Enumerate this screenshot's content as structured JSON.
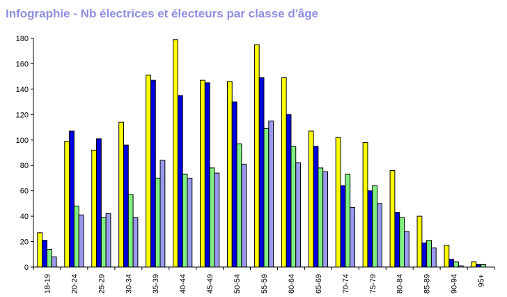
{
  "chart_data": {
    "type": "bar",
    "title": "Infographie - Nb électrices et électeurs par classe d'âge",
    "xlabel": "",
    "ylabel": "",
    "ylim": [
      0,
      180
    ],
    "yticks": [
      0,
      20,
      40,
      60,
      80,
      100,
      120,
      140,
      160,
      180
    ],
    "grid": false,
    "legend": "none",
    "categories": [
      "18-19",
      "20-24",
      "25-29",
      "30-34",
      "35-39",
      "40-44",
      "45-49",
      "50-54",
      "55-59",
      "60-64",
      "65-69",
      "70-74",
      "75-79",
      "80-84",
      "85-89",
      "90-94",
      "95+"
    ],
    "series": [
      {
        "color": "#ffff00",
        "values": [
          27,
          99,
          92,
          114,
          151,
          179,
          147,
          146,
          175,
          149,
          107,
          102,
          98,
          76,
          40,
          17,
          4
        ]
      },
      {
        "color": "#0000dd",
        "values": [
          21,
          107,
          101,
          96,
          147,
          135,
          145,
          130,
          149,
          120,
          95,
          64,
          60,
          43,
          19,
          6,
          2
        ]
      },
      {
        "color": "#80f080",
        "values": [
          14,
          48,
          39,
          57,
          70,
          73,
          78,
          97,
          109,
          95,
          78,
          73,
          64,
          39,
          21,
          4,
          2
        ]
      },
      {
        "color": "#9999ee",
        "values": [
          8,
          41,
          42,
          39,
          84,
          70,
          74,
          81,
          115,
          82,
          75,
          47,
          50,
          28,
          15,
          1,
          0
        ]
      }
    ]
  }
}
